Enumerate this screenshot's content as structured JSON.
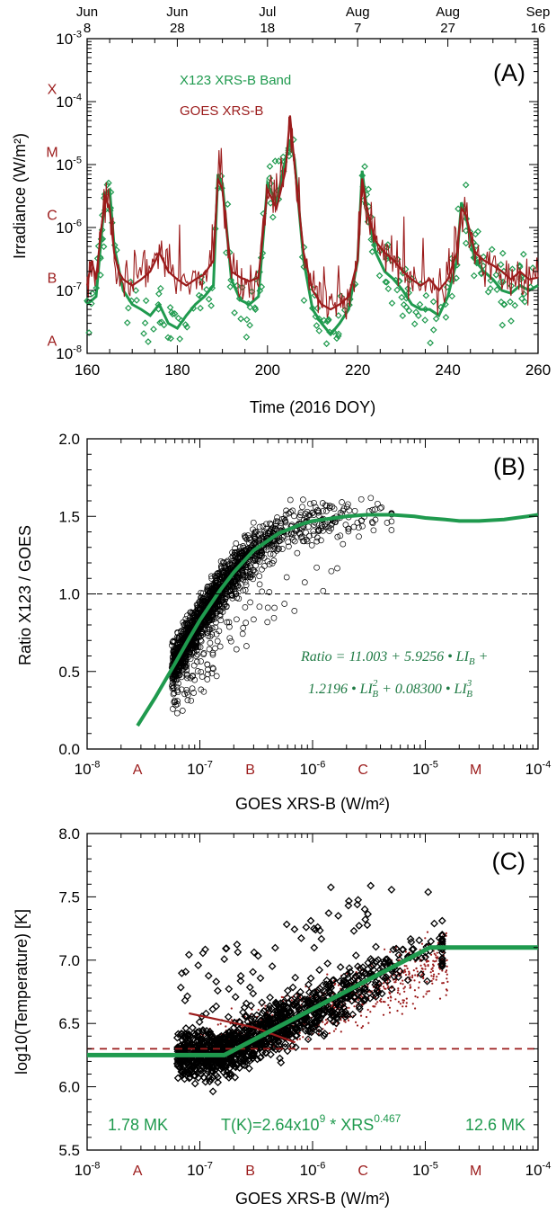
{
  "colors": {
    "green": "#1f9a4e",
    "red": "#9b1b1b",
    "black": "#000000"
  },
  "chart_data": [
    {
      "panel": "(A)",
      "type": "line",
      "ylabel": "Irradiance (W/m²)",
      "xlabel": "Time (2016 DOY)",
      "xlim": [
        160,
        260
      ],
      "ylim": [
        1e-08,
        0.001
      ],
      "yscale": "log",
      "xticks": [
        "160",
        "180",
        "200",
        "220",
        "240",
        "260"
      ],
      "yticks": [
        {
          "v": 1e-08,
          "m": "10",
          "e": "-8"
        },
        {
          "v": 1e-07,
          "m": "10",
          "e": "-7"
        },
        {
          "v": 1e-06,
          "m": "10",
          "e": "-6"
        },
        {
          "v": 1e-05,
          "m": "10",
          "e": "-5"
        },
        {
          "v": 0.0001,
          "m": "10",
          "e": "-4"
        },
        {
          "v": 0.001,
          "m": "10",
          "e": "-3"
        }
      ],
      "top_axis_ticks": [
        {
          "doy": 160,
          "month": "Jun",
          "day": "8"
        },
        {
          "doy": 180,
          "month": "Jun",
          "day": "28"
        },
        {
          "doy": 200,
          "month": "Jul",
          "day": "18"
        },
        {
          "doy": 220,
          "month": "Aug",
          "day": "7"
        },
        {
          "doy": 240,
          "month": "Aug",
          "day": "27"
        },
        {
          "doy": 260,
          "month": "Sep",
          "day": "16"
        }
      ],
      "class_labels": [
        {
          "label": "A",
          "v": 1.6e-08
        },
        {
          "label": "B",
          "v": 1.6e-07
        },
        {
          "label": "C",
          "v": 1.6e-06
        },
        {
          "label": "M",
          "v": 1.6e-05
        },
        {
          "label": "X",
          "v": 0.00016
        }
      ],
      "legend": [
        {
          "name": "X123 XRS-B Band",
          "color": "#1f9a4e"
        },
        {
          "name": "GOES XRS-B",
          "color": "#9b1b1b"
        }
      ],
      "series": [
        {
          "name": "GOES XRS-B",
          "x": [
            160,
            161,
            162,
            163,
            164,
            165,
            166,
            167,
            168,
            170,
            172,
            174,
            176,
            178,
            180,
            182,
            184,
            186,
            188,
            189,
            190,
            191,
            192,
            194,
            196,
            198,
            200,
            202,
            204,
            205,
            206,
            207,
            208,
            210,
            212,
            214,
            216,
            218,
            220,
            221,
            222,
            224,
            226,
            228,
            230,
            232,
            234,
            236,
            238,
            240,
            242,
            243,
            244,
            245,
            246,
            248,
            250,
            252,
            254,
            256,
            258,
            260
          ],
          "y": [
            1.2e-07,
            3e-07,
            1.5e-07,
            8e-07,
            3e-06,
            2e-06,
            4e-07,
            2e-07,
            1.5e-07,
            1.2e-07,
            1.5e-07,
            2e-07,
            4e-07,
            2e-07,
            1.5e-07,
            1.2e-07,
            1.5e-07,
            1.8e-07,
            3e-07,
            6e-06,
            4e-06,
            8e-07,
            2e-07,
            1.6e-07,
            1.4e-07,
            1.6e-07,
            4e-06,
            2e-06,
            8e-06,
            6e-05,
            1e-05,
            2e-06,
            4e-07,
            1e-07,
            6e-08,
            5e-08,
            6e-08,
            8e-08,
            3e-07,
            6e-06,
            2e-06,
            6e-07,
            4e-07,
            3e-07,
            2e-07,
            1.5e-07,
            1.2e-07,
            1.5e-07,
            1e-07,
            1.5e-07,
            4e-07,
            2e-06,
            1.6e-06,
            8e-07,
            4e-07,
            3e-07,
            2.5e-07,
            2e-07,
            1.5e-07,
            2e-07,
            1.5e-07,
            1.6e-07
          ]
        },
        {
          "name": "X123 XRS-B Band",
          "x": [
            160,
            162,
            164,
            165,
            166,
            168,
            170,
            172,
            174,
            176,
            178,
            180,
            182,
            184,
            186,
            188,
            189,
            190,
            192,
            194,
            196,
            198,
            200,
            202,
            204,
            205,
            206,
            208,
            210,
            212,
            214,
            216,
            218,
            220,
            221,
            222,
            224,
            226,
            228,
            230,
            232,
            234,
            236,
            238,
            240,
            242,
            243,
            244,
            246,
            248,
            250,
            252,
            254,
            256,
            258,
            260
          ],
          "y": [
            6e-08,
            8e-08,
            3.5e-06,
            4e-06,
            5e-07,
            1e-07,
            6e-08,
            5e-08,
            4e-08,
            6e-08,
            3e-08,
            2.5e-08,
            4e-08,
            6e-08,
            8e-08,
            1.2e-07,
            7e-06,
            5e-06,
            1.5e-07,
            7e-08,
            6e-08,
            8e-08,
            5e-06,
            2.5e-06,
            1.2e-05,
            2.5e-05,
            1.2e-05,
            3e-07,
            5e-08,
            3e-08,
            2e-08,
            3e-08,
            5e-08,
            3e-07,
            8e-06,
            2e-06,
            4e-07,
            2e-07,
            1.5e-07,
            1e-07,
            6e-08,
            5e-08,
            5e-08,
            4e-08,
            8e-08,
            3e-07,
            2.5e-06,
            1.5e-06,
            3e-07,
            2e-07,
            1.5e-07,
            1e-07,
            9e-08,
            1.2e-07,
            1e-07,
            1.2e-07
          ]
        }
      ]
    },
    {
      "panel": "(B)",
      "type": "scatter",
      "ylabel": "Ratio X123 / GOES",
      "xlabel": "GOES XRS-B (W/m²)",
      "xlim": [
        1e-08,
        0.0001
      ],
      "xscale": "log",
      "ylim": [
        0.0,
        2.0
      ],
      "yticks": [
        "0.0",
        "0.5",
        "1.0",
        "1.5",
        "2.0"
      ],
      "xticks": [
        {
          "v": 1e-08,
          "m": "10",
          "e": "-8"
        },
        {
          "v": 1e-07,
          "m": "10",
          "e": "-7"
        },
        {
          "v": 1e-06,
          "m": "10",
          "e": "-6"
        },
        {
          "v": 1e-05,
          "m": "10",
          "e": "-5"
        },
        {
          "v": 0.0001,
          "m": "10",
          "e": "-4"
        }
      ],
      "class_labels": [
        {
          "label": "A",
          "v": 2.8e-08
        },
        {
          "label": "B",
          "v": 2.8e-07
        },
        {
          "label": "C",
          "v": 2.8e-06
        },
        {
          "label": "M",
          "v": 2.8e-05
        }
      ],
      "reference_line": 1.0,
      "equation_line1": "Ratio = 11.003 + 5.9256 • LI",
      "equation_sub": "B",
      "equation_plus": " +",
      "equation_line2a": "1.2196 • LI",
      "equation_sup2": "2",
      "equation_line2b": " + 0.08300 • LI",
      "equation_sup3": "3",
      "fit_curve": {
        "x": [
          2.8e-08,
          4e-08,
          6e-08,
          8e-08,
          1e-07,
          1.5e-07,
          2e-07,
          3e-07,
          5e-07,
          8e-07,
          1e-06,
          2e-06,
          3e-06,
          5e-06,
          8e-06,
          1e-05,
          1.5e-05,
          2e-05,
          3e-05,
          5e-05,
          8e-05,
          0.0001
        ],
        "y": [
          0.15,
          0.33,
          0.55,
          0.71,
          0.83,
          1.02,
          1.14,
          1.28,
          1.39,
          1.45,
          1.47,
          1.5,
          1.51,
          1.51,
          1.5,
          1.49,
          1.48,
          1.47,
          1.47,
          1.48,
          1.5,
          1.51
        ]
      },
      "points_summary": {
        "count": 1800,
        "x_range": [
          5e-08,
          5e-06
        ],
        "ratio_near_fit": true
      }
    },
    {
      "panel": "(C)",
      "type": "scatter",
      "ylabel": "log10(Temperature) [K]",
      "xlabel": "GOES XRS-B (W/m²)",
      "xlim": [
        1e-08,
        0.0001
      ],
      "xscale": "log",
      "ylim": [
        5.5,
        8.0
      ],
      "yticks": [
        "5.5",
        "6.0",
        "6.5",
        "7.0",
        "7.5",
        "8.0"
      ],
      "xticks": [
        {
          "v": 1e-08,
          "m": "10",
          "e": "-8"
        },
        {
          "v": 1e-07,
          "m": "10",
          "e": "-7"
        },
        {
          "v": 1e-06,
          "m": "10",
          "e": "-6"
        },
        {
          "v": 1e-05,
          "m": "10",
          "e": "-5"
        },
        {
          "v": 0.0001,
          "m": "10",
          "e": "-4"
        }
      ],
      "class_labels": [
        {
          "label": "A",
          "v": 2.8e-08
        },
        {
          "label": "B",
          "v": 2.8e-07
        },
        {
          "label": "C",
          "v": 2.8e-06
        },
        {
          "label": "M",
          "v": 2.8e-05
        }
      ],
      "reference_line": 6.3,
      "annot_low": "1.78 MK",
      "annot_formula_a": "T(K)=2.64x10",
      "annot_formula_exp1": "9",
      "annot_formula_b": " * XRS",
      "annot_formula_exp2": "0.467",
      "annot_high": "12.6 MK",
      "fit_curve": {
        "x": [
          1e-08,
          1.65e-07,
          1.1e-05,
          0.0001
        ],
        "y": [
          6.25,
          6.25,
          7.1,
          7.1
        ]
      },
      "red_fit": {
        "x": [
          8e-08,
          3e-07,
          7e-07
        ],
        "y": [
          6.58,
          6.47,
          6.35
        ]
      }
    }
  ]
}
